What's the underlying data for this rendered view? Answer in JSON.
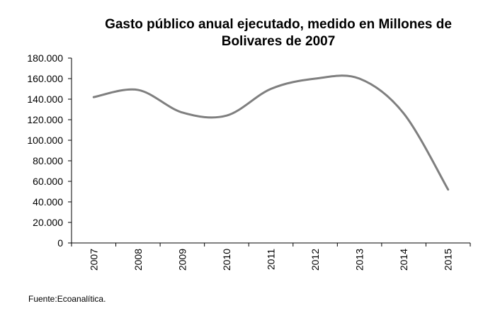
{
  "chart_data": {
    "type": "line",
    "title_lines": [
      "Gasto público anual ejecutado, medido en Millones de",
      "Bolivares de 2007"
    ],
    "xlabel": "",
    "ylabel": "",
    "categories": [
      "2007",
      "2008",
      "2009",
      "2010",
      "2011",
      "2012",
      "2013",
      "2014",
      "2015"
    ],
    "series": [
      {
        "values": [
          142000,
          149000,
          127000,
          124000,
          150000,
          160000,
          160000,
          126000,
          52000
        ]
      }
    ],
    "ylim": [
      0,
      180000
    ],
    "y_ticks": [
      0,
      20000,
      40000,
      60000,
      80000,
      100000,
      120000,
      140000,
      160000,
      180000
    ],
    "y_tick_labels": [
      "0",
      "20.000",
      "40.000",
      "60.000",
      "80.000",
      "100.000",
      "120.000",
      "140.000",
      "160.000",
      "180.000"
    ],
    "smooth": true,
    "grid": false,
    "legend": "none",
    "line_color": "#7f7f7f",
    "source": "Fuente:Ecoanalítica."
  }
}
